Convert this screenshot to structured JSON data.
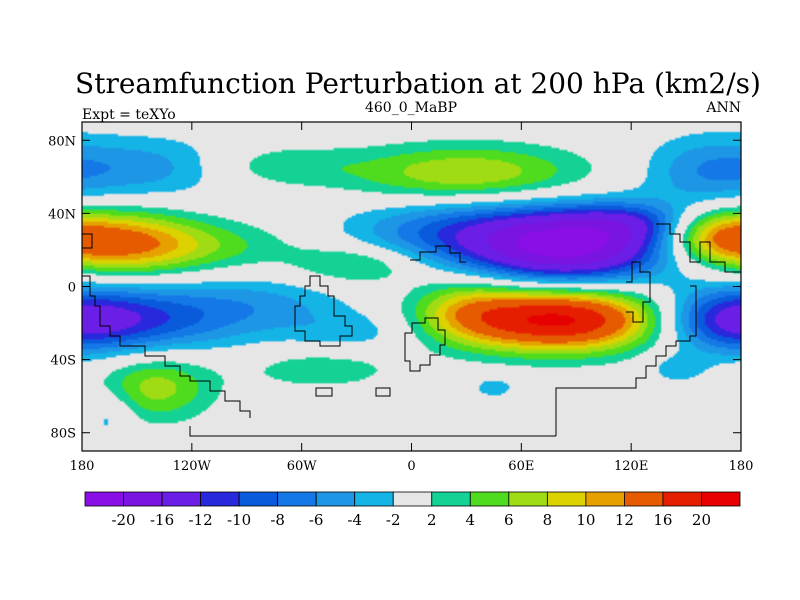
{
  "chart_data": {
    "type": "heatmap",
    "title": "Streamfunction Perturbation at 200 hPa (km2/s)",
    "subtitle_left": "Expt = teXYo",
    "subtitle_center": "460_0_MaBP",
    "subtitle_right": "ANN",
    "x_ticks": [
      {
        "value": -180,
        "label": "180"
      },
      {
        "value": -120,
        "label": "120W"
      },
      {
        "value": -60,
        "label": "60W"
      },
      {
        "value": 0,
        "label": "0"
      },
      {
        "value": 60,
        "label": "60E"
      },
      {
        "value": 120,
        "label": "120E"
      },
      {
        "value": 180,
        "label": "180"
      }
    ],
    "y_ticks": [
      {
        "value": 80,
        "label": "80N"
      },
      {
        "value": 40,
        "label": "40N"
      },
      {
        "value": 0,
        "label": "0"
      },
      {
        "value": -40,
        "label": "40S"
      },
      {
        "value": -80,
        "label": "80S"
      }
    ],
    "xlim": [
      -180,
      180
    ],
    "ylim": [
      -90,
      90
    ],
    "colorbar_labels": [
      "-20",
      "-16",
      "-12",
      "-10",
      "-8",
      "-6",
      "-4",
      "-2",
      "2",
      "4",
      "6",
      "8",
      "10",
      "12",
      "16",
      "20"
    ],
    "colorbar_levels": [
      -20,
      -16,
      -12,
      -10,
      -8,
      -6,
      -4,
      -2,
      2,
      4,
      6,
      8,
      10,
      12,
      16,
      20
    ],
    "colorbar_colors": [
      "#8a0ee6",
      "#7a14e0",
      "#6a1ee6",
      "#2828dc",
      "#0a5adc",
      "#1478e6",
      "#1e96e6",
      "#14b4e6",
      "#e6e6e6",
      "#14d296",
      "#50dc1e",
      "#a0dc14",
      "#dcd200",
      "#e6a000",
      "#e65a00",
      "#e61e00",
      "#e60000"
    ],
    "background_value_color": "#e6e6e6",
    "features": [
      {
        "lon": 85,
        "lat": 22,
        "value": -21,
        "sx": 38,
        "sy": 14
      },
      {
        "lon": 20,
        "lat": 30,
        "value": -7,
        "sx": 40,
        "sy": 12
      },
      {
        "lon": 120,
        "lat": 35,
        "value": -6,
        "sx": 25,
        "sy": 8
      },
      {
        "lon": 80,
        "lat": -18,
        "value": 21,
        "sx": 40,
        "sy": 12
      },
      {
        "lon": 30,
        "lat": -12,
        "value": 5,
        "sx": 20,
        "sy": 12
      },
      {
        "lon": -160,
        "lat": 24,
        "value": 12,
        "sx": 30,
        "sy": 12
      },
      {
        "lon": -110,
        "lat": 22,
        "value": 4,
        "sx": 35,
        "sy": 10
      },
      {
        "lon": -30,
        "lat": 12,
        "value": 5,
        "sx": 25,
        "sy": 8
      },
      {
        "lon": 30,
        "lat": 62,
        "value": 8,
        "sx": 45,
        "sy": 11
      },
      {
        "lon": -75,
        "lat": 66,
        "value": 3.5,
        "sx": 30,
        "sy": 8
      },
      {
        "lon": -145,
        "lat": 65,
        "value": -5,
        "sx": 35,
        "sy": 12
      },
      {
        "lon": 160,
        "lat": 63,
        "value": -5,
        "sx": 25,
        "sy": 14
      },
      {
        "lon": -155,
        "lat": -18,
        "value": -10,
        "sx": 40,
        "sy": 13
      },
      {
        "lon": -80,
        "lat": -10,
        "value": -4,
        "sx": 35,
        "sy": 12
      },
      {
        "lon": -30,
        "lat": -25,
        "value": -3,
        "sx": 25,
        "sy": 8
      },
      {
        "lon": 170,
        "lat": -18,
        "value": -8,
        "sx": 25,
        "sy": 12
      },
      {
        "lon": 165,
        "lat": 28,
        "value": 9,
        "sx": 20,
        "sy": 10
      },
      {
        "lon": -140,
        "lat": -55,
        "value": 7,
        "sx": 22,
        "sy": 13
      },
      {
        "lon": -50,
        "lat": -45,
        "value": 3.5,
        "sx": 30,
        "sy": 8
      },
      {
        "lon": 45,
        "lat": -55,
        "value": -3,
        "sx": 10,
        "sy": 5
      },
      {
        "lon": 145,
        "lat": -45,
        "value": -3,
        "sx": 12,
        "sy": 6
      },
      {
        "lon": -165,
        "lat": -70,
        "value": -3.5,
        "sx": 10,
        "sy": 10
      }
    ],
    "grid": false,
    "legend": "bottom"
  }
}
